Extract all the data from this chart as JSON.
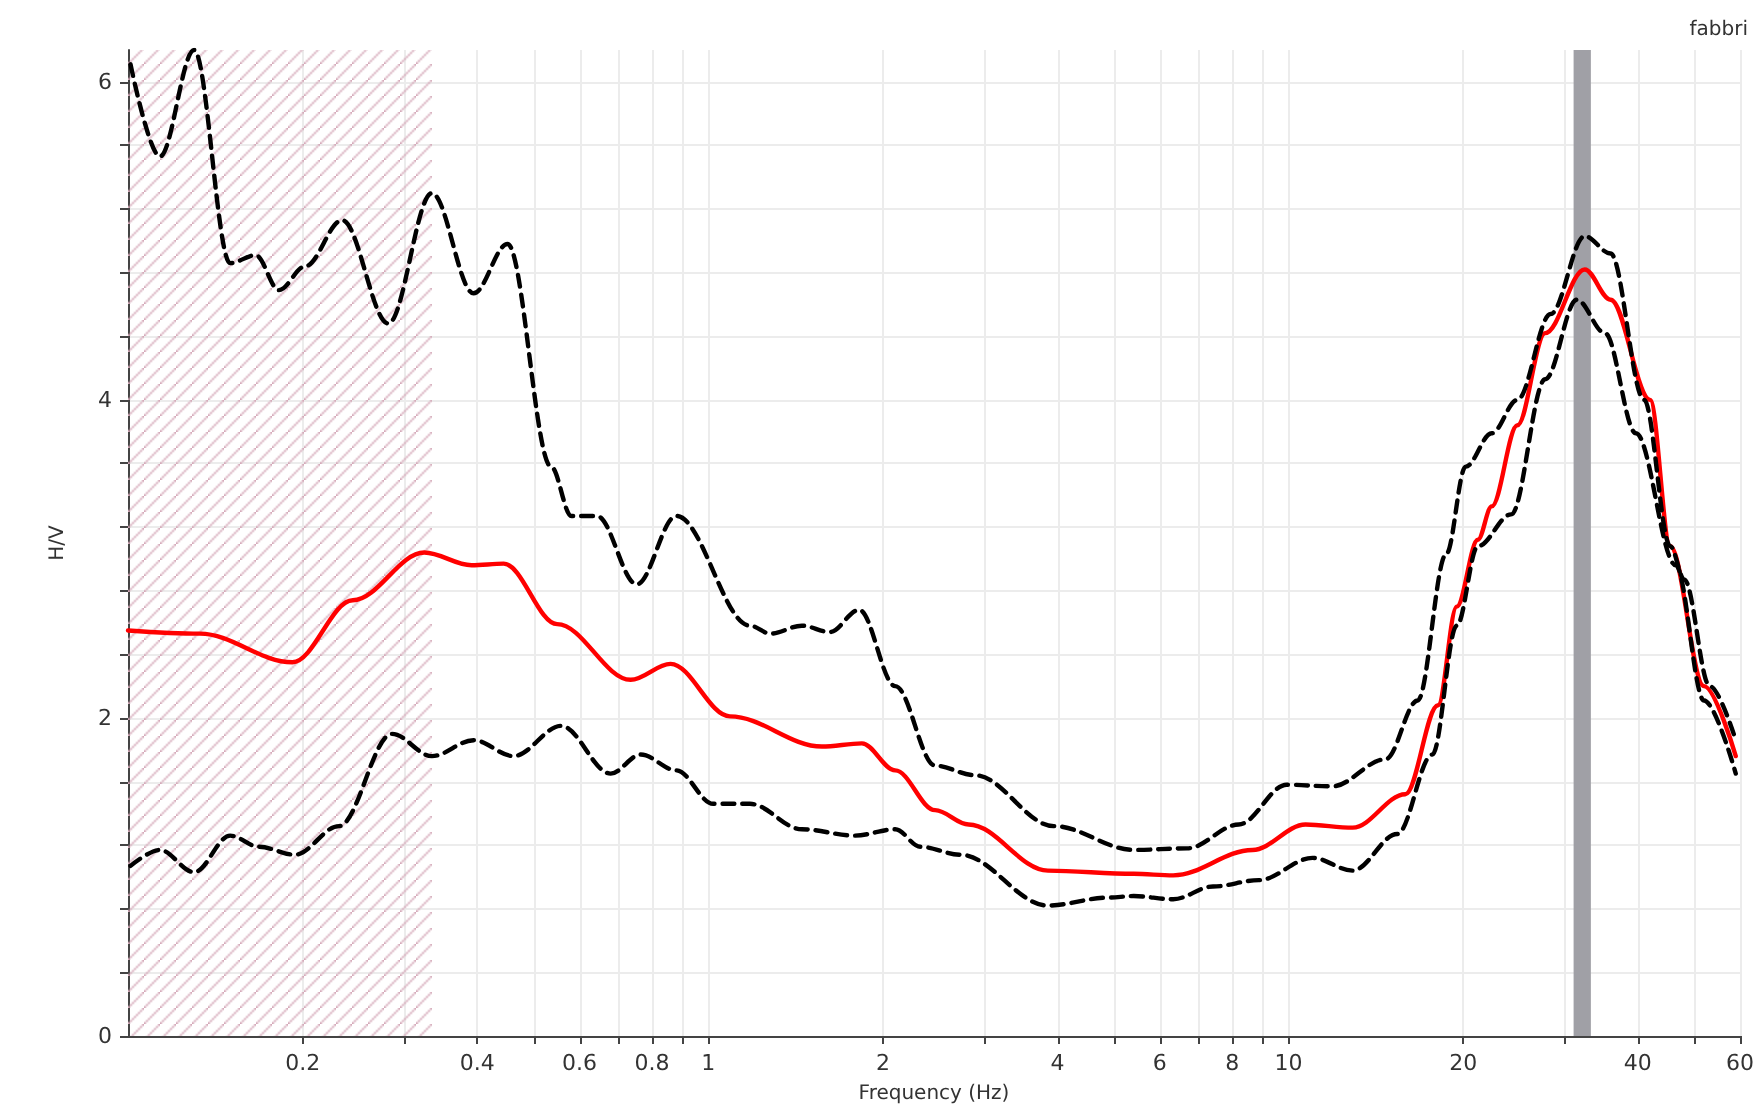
{
  "chart_data": {
    "type": "line",
    "xlabel": "Frequency (Hz)",
    "ylabel": "H/V",
    "log": "x",
    "grid": true,
    "marker": "none",
    "annotations": [
      "fabbri"
    ],
    "xlim": [
      0.1,
      60
    ],
    "ylim": [
      0,
      6.2
    ],
    "xticks": [
      0.2,
      {
        "value": 0.3,
        "label": null
      },
      0.4,
      {
        "value": 0.5,
        "label": null
      },
      0.6,
      {
        "value": 0.7,
        "label": null
      },
      0.8,
      {
        "value": 0.9,
        "label": null
      },
      1,
      2,
      {
        "value": 3,
        "label": null
      },
      4,
      {
        "value": 5,
        "label": null
      },
      6,
      {
        "value": 7,
        "label": null
      },
      8,
      {
        "value": 9,
        "label": null
      },
      10,
      20,
      {
        "value": 30,
        "label": null
      },
      40,
      {
        "value": 50,
        "label": null
      },
      60
    ],
    "yticks": [
      0,
      {
        "value": 0.4,
        "label": null
      },
      {
        "value": 0.8,
        "label": null
      },
      {
        "value": 1.2,
        "label": null
      },
      {
        "value": 1.6,
        "label": null
      },
      2,
      {
        "value": 2.4,
        "label": null
      },
      {
        "value": 2.8,
        "label": null
      },
      {
        "value": 3.2,
        "label": null
      },
      {
        "value": 3.6,
        "label": null
      },
      4,
      {
        "value": 4.4,
        "label": null
      },
      {
        "value": 4.8,
        "label": null
      },
      {
        "value": 5.2,
        "label": null
      },
      {
        "value": 5.6,
        "label": null
      },
      6
    ],
    "bands": [
      {
        "axis": "x",
        "from": 0.1,
        "to": 0.334,
        "color": "#d4a8b8"
      },
      {
        "axis": "x",
        "from": 31,
        "to": 33.2,
        "color": "#a0a0a6"
      }
    ],
    "series": [
      {
        "color": "#ff0000",
        "line_style": "solid",
        "x": [
          0.1,
          0.133,
          0.192,
          0.244,
          0.324,
          0.391,
          0.444,
          0.549,
          0.735,
          0.861,
          1.09,
          1.57,
          1.84,
          2.1,
          2.46,
          2.81,
          3.85,
          5.41,
          6.33,
          8.67,
          10.7,
          12.9,
          15.9,
          18.1,
          19.5,
          21.2,
          22.4,
          24.8,
          27.7,
          32.4,
          35.9,
          42,
          45.5,
          52,
          59
        ],
        "values": [
          2.55,
          2.53,
          2.35,
          2.74,
          3.04,
          2.96,
          2.97,
          2.59,
          2.24,
          2.34,
          2.01,
          1.82,
          1.84,
          1.67,
          1.42,
          1.33,
          1.04,
          1.02,
          1.01,
          1.17,
          1.33,
          1.31,
          1.52,
          2.08,
          2.7,
          3.12,
          3.33,
          3.84,
          4.42,
          4.82,
          4.63,
          4.0,
          3.08,
          2.2,
          1.76
        ]
      },
      {
        "color": "#000000",
        "line_style": "dashed",
        "x": [
          0.101,
          0.1135,
          0.13,
          0.15,
          0.166,
          0.182,
          0.202,
          0.234,
          0.281,
          0.334,
          0.394,
          0.451,
          0.536,
          0.581,
          0.643,
          0.753,
          0.881,
          1.18,
          1.28,
          1.45,
          1.62,
          1.82,
          2.1,
          2.46,
          2.88,
          3.94,
          5.41,
          6.69,
          8.21,
          9.93,
          11.9,
          14.7,
          16.7,
          18.7,
          20.2,
          22.4,
          24.8,
          28.3,
          32.4,
          35.9,
          41,
          45.5,
          48.1,
          53.2,
          59
        ],
        "values": [
          6.11,
          5.53,
          6.2,
          4.86,
          4.91,
          4.69,
          4.84,
          5.13,
          4.48,
          5.3,
          4.67,
          4.98,
          3.58,
          3.27,
          3.27,
          2.84,
          3.27,
          2.58,
          2.53,
          2.58,
          2.54,
          2.68,
          2.2,
          1.7,
          1.64,
          1.32,
          1.17,
          1.18,
          1.33,
          1.58,
          1.57,
          1.74,
          2.11,
          3.03,
          3.58,
          3.79,
          4.0,
          4.54,
          5.03,
          4.92,
          4.0,
          3.08,
          2.87,
          2.2,
          1.86
        ]
      },
      {
        "color": "#000000",
        "line_style": "dashed",
        "x": [
          0.101,
          0.1135,
          0.13,
          0.15,
          0.168,
          0.194,
          0.231,
          0.285,
          0.334,
          0.394,
          0.462,
          0.558,
          0.679,
          0.765,
          0.881,
          1.02,
          1.18,
          1.45,
          1.79,
          2.1,
          2.32,
          2.72,
          3.85,
          4.88,
          5.41,
          6.33,
          7.41,
          8.89,
          11,
          12.9,
          15.4,
          17.7,
          19.5,
          21.2,
          24.2,
          27.7,
          31.4,
          35.1,
          39.7,
          46.5,
          52,
          59
        ],
        "values": [
          1.07,
          1.17,
          1.03,
          1.26,
          1.19,
          1.14,
          1.32,
          1.9,
          1.76,
          1.86,
          1.76,
          1.95,
          1.65,
          1.77,
          1.67,
          1.46,
          1.46,
          1.3,
          1.26,
          1.3,
          1.19,
          1.14,
          0.82,
          0.87,
          0.88,
          0.86,
          0.94,
          0.98,
          1.12,
          1.04,
          1.27,
          1.77,
          2.58,
          3.08,
          3.28,
          4.13,
          4.63,
          4.42,
          3.79,
          2.96,
          2.11,
          1.65
        ]
      }
    ]
  }
}
